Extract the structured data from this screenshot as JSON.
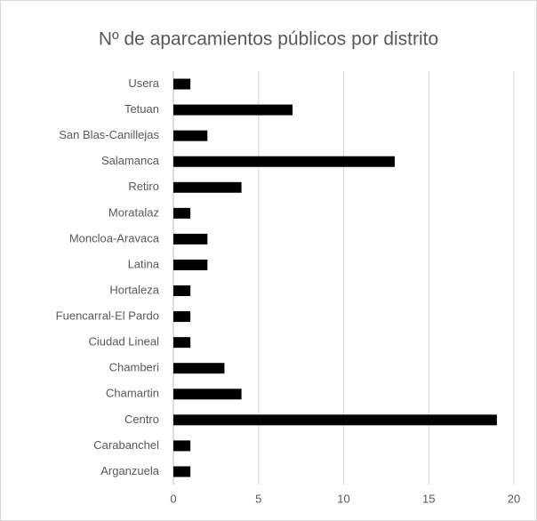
{
  "chart_data": {
    "type": "bar",
    "orientation": "horizontal",
    "title": "Nº de aparcamientos públicos por distrito",
    "categories": [
      "Usera",
      "Tetuan",
      "San Blas-Canillejas",
      "Salamanca",
      "Retiro",
      "Moratalaz",
      "Moncloa-Aravaca",
      "Latina",
      "Hortaleza",
      "Fuencarral-El Pardo",
      "Ciudad Lineal",
      "Chamberi",
      "Chamartin",
      "Centro",
      "Carabanchel",
      "Arganzuela"
    ],
    "values": [
      1,
      7,
      2,
      13,
      4,
      1,
      2,
      2,
      1,
      1,
      1,
      3,
      4,
      19,
      1,
      1
    ],
    "color": "#000000",
    "xlim": [
      0,
      20
    ],
    "xticks": [
      0,
      5,
      10,
      15,
      20
    ],
    "grid": true
  }
}
